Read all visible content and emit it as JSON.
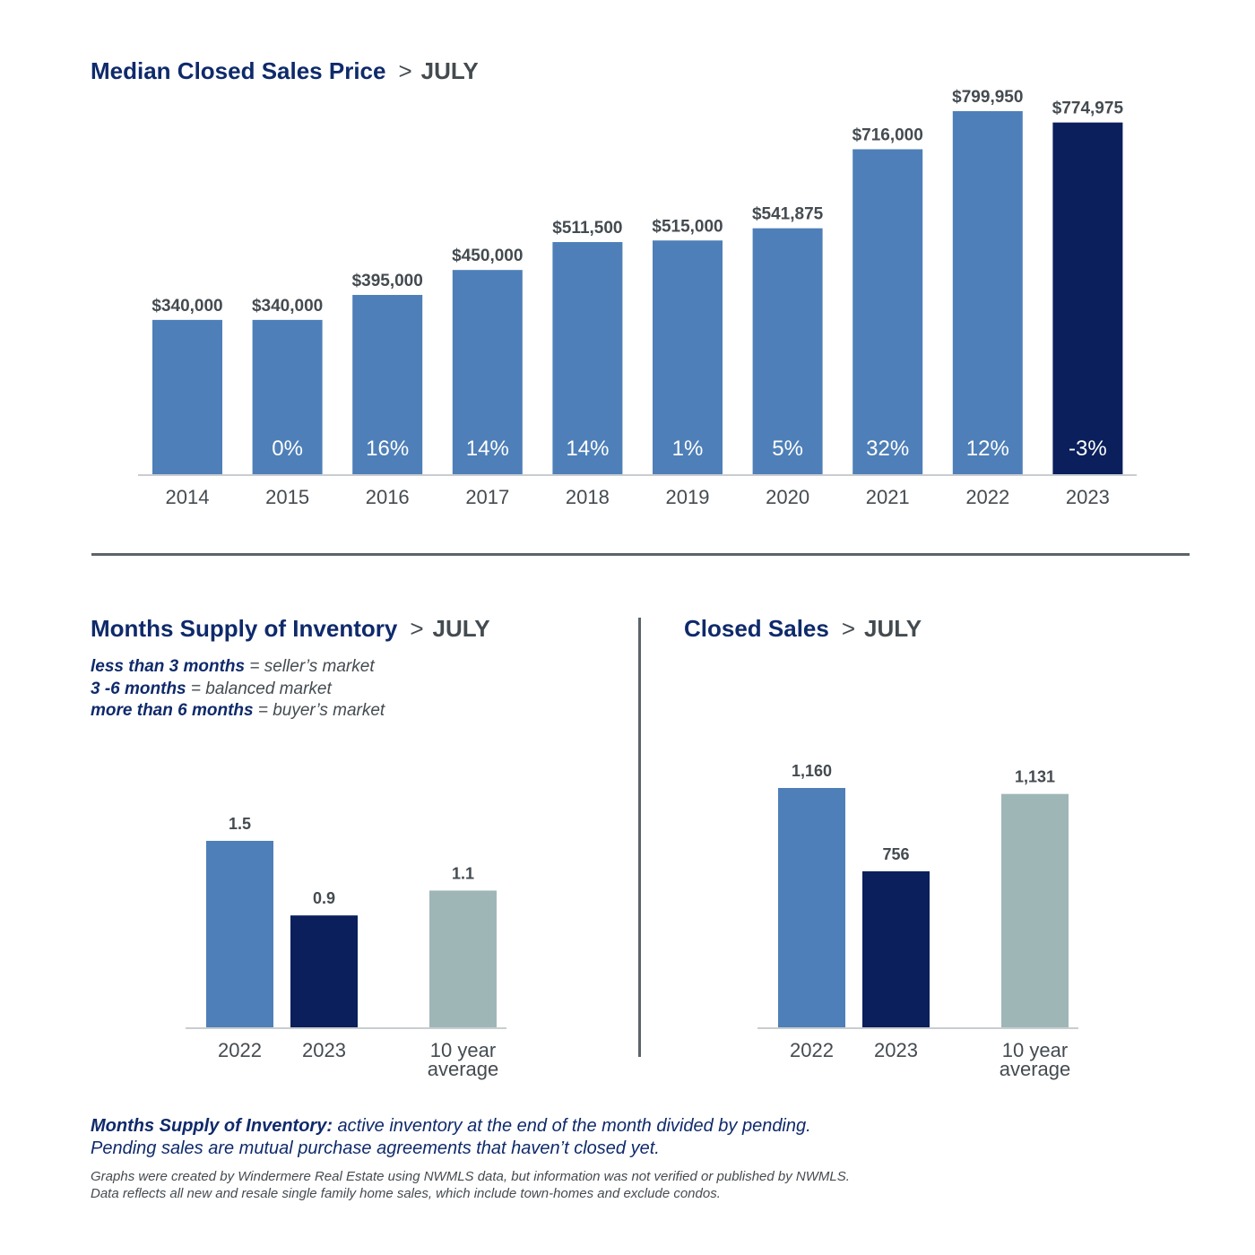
{
  "colors": {
    "navy": "#0f2a6b",
    "bar_blue": "#4e7fb8",
    "bar_navy": "#0a1f5c",
    "bar_gray": "#9fb6b7",
    "text_gray": "#444b50"
  },
  "sep": ">",
  "chart_data": [
    {
      "type": "bar",
      "title": "Median Closed Sales Price",
      "subtitle": "JULY",
      "categories": [
        "2014",
        "2015",
        "2016",
        "2017",
        "2018",
        "2019",
        "2020",
        "2021",
        "2022",
        "2023"
      ],
      "values": [
        340000,
        340000,
        395000,
        450000,
        511500,
        515000,
        541875,
        716000,
        799950,
        774975
      ],
      "value_labels": [
        "$340,000",
        "$340,000",
        "$395,000",
        "$450,000",
        "$511,500",
        "$515,000",
        "$541,875",
        "$716,000",
        "$799,950",
        "$774,975"
      ],
      "change_labels": [
        "",
        "0%",
        "16%",
        "14%",
        "14%",
        "1%",
        "5%",
        "32%",
        "12%",
        "-3%"
      ],
      "highlight_index": 9
    },
    {
      "type": "bar",
      "title": "Months Supply of Inventory",
      "subtitle": "JULY",
      "categories": [
        "2022",
        "2023",
        "10 year average"
      ],
      "category_lines": [
        [
          "2022"
        ],
        [
          "2023"
        ],
        [
          "10 year",
          "average"
        ]
      ],
      "values": [
        1.5,
        0.9,
        1.1
      ],
      "value_labels": [
        "1.5",
        "0.9",
        "1.1"
      ],
      "ylim": [
        0,
        1.5
      ]
    },
    {
      "type": "bar",
      "title": "Closed Sales",
      "subtitle": "JULY",
      "categories": [
        "2022",
        "2023",
        "10 year average"
      ],
      "category_lines": [
        [
          "2022"
        ],
        [
          "2023"
        ],
        [
          "10 year",
          "average"
        ]
      ],
      "values": [
        1160,
        756,
        1131
      ],
      "value_labels": [
        "1,160",
        "756",
        "1,131"
      ],
      "ylim": [
        0,
        1160
      ]
    }
  ],
  "legend": [
    {
      "bold": "less than 3 months",
      "rest": " = seller’s market"
    },
    {
      "bold": "3 -6 months",
      "rest": " = balanced market"
    },
    {
      "bold": "more than 6 months",
      "rest": " = buyer’s market"
    }
  ],
  "definition": {
    "term": "Months Supply of Inventory:",
    "line1": " active inventory at the end of the month divided by pending.",
    "line2": "Pending sales are mutual purchase agreements that haven’t closed yet."
  },
  "footnote": {
    "line1": "Graphs were created by Windermere Real Estate using NWMLS data, but information was not verified or published by NWMLS.",
    "line2": "Data reflects all new and resale single family home sales, which include town-homes and exclude condos."
  }
}
